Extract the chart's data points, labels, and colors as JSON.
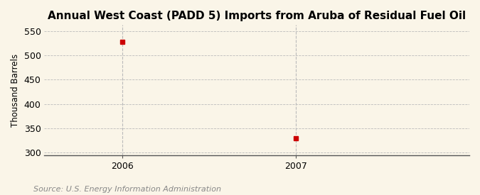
{
  "title": "Annual West Coast (PADD 5) Imports from Aruba of Residual Fuel Oil",
  "ylabel": "Thousand Barrels",
  "source": "Source: U.S. Energy Information Administration",
  "x_data": [
    2006,
    2007
  ],
  "y_data": [
    528,
    330
  ],
  "xlim": [
    2005.55,
    2008.0
  ],
  "ylim": [
    295,
    562
  ],
  "yticks": [
    300,
    350,
    400,
    450,
    500,
    550
  ],
  "xticks": [
    2006,
    2007
  ],
  "background_color": "#FAF5E8",
  "plot_bg_color": "#FAF5E8",
  "marker_color": "#CC0000",
  "marker_style": "s",
  "marker_size": 4,
  "grid_color": "#BBBBBB",
  "vline_color": "#BBBBBB",
  "title_fontsize": 11,
  "label_fontsize": 8.5,
  "tick_fontsize": 9,
  "source_fontsize": 8
}
